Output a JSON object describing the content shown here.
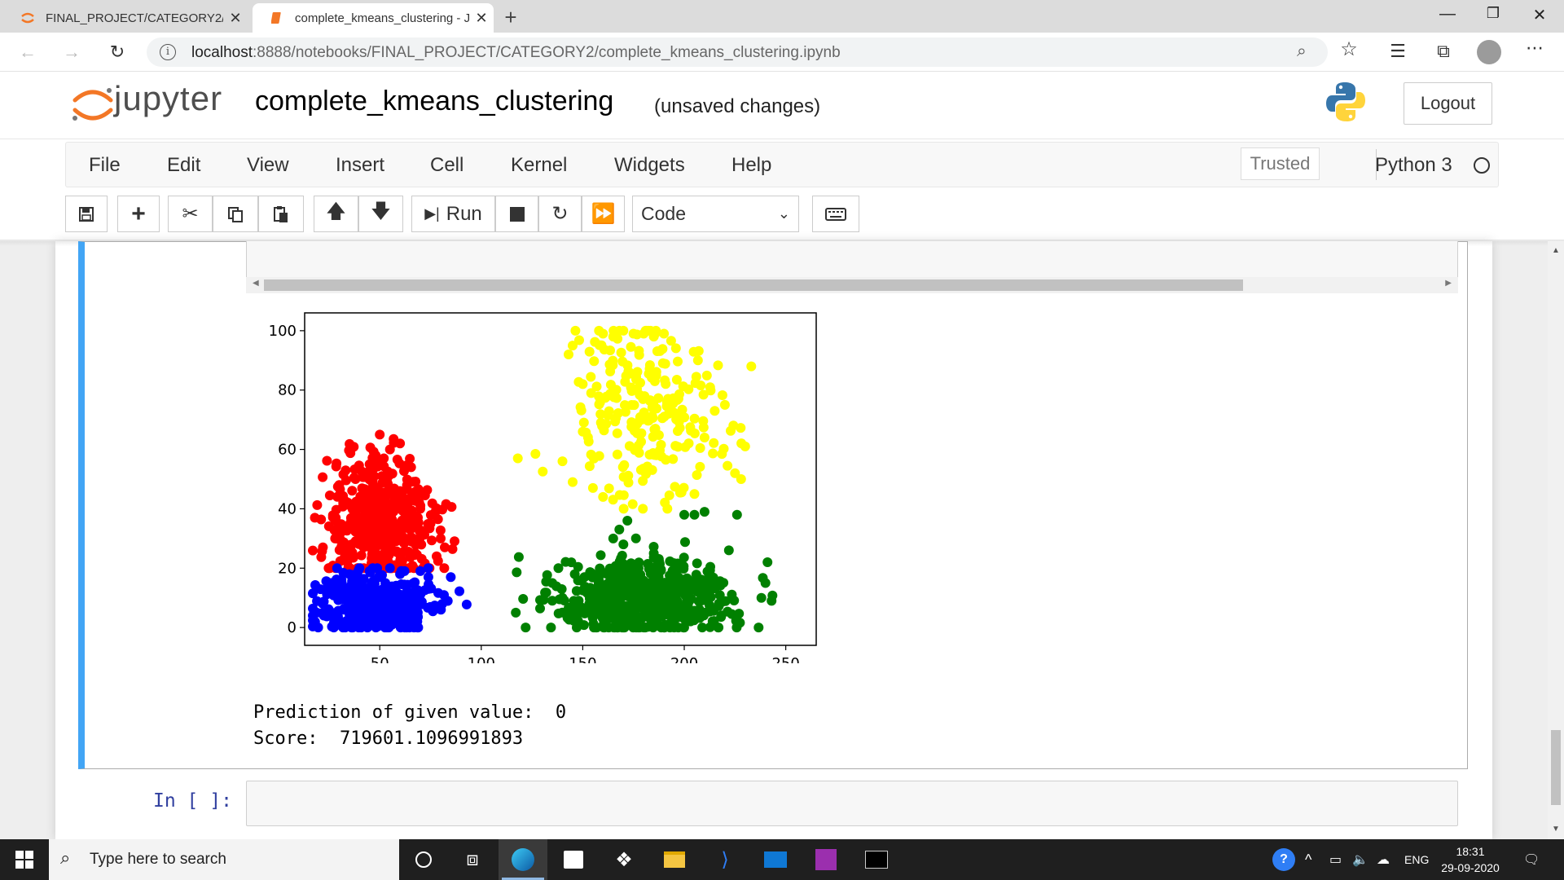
{
  "browser": {
    "tabs": [
      {
        "title": "FINAL_PROJECT/CATEGORY2/",
        "active": false
      },
      {
        "title": "complete_kmeans_clustering - Ju",
        "active": true
      }
    ],
    "url_host": "localhost",
    "url_rest": ":8888/notebooks/FINAL_PROJECT/CATEGORY2/complete_kmeans_clustering.ipynb",
    "window_controls": {
      "minimize": "—",
      "restore": "❐",
      "close": "✕"
    },
    "icons": [
      "back-icon",
      "forward-icon",
      "refresh-icon",
      "zoom-icon",
      "favorite-star-icon",
      "favorites-list-icon",
      "collections-icon",
      "profile-icon",
      "more-icon"
    ]
  },
  "jupyter": {
    "logo_text": "jupyter",
    "notebook_title": "complete_kmeans_clustering",
    "save_status": "(unsaved changes)",
    "logout_label": "Logout",
    "menu": [
      "File",
      "Edit",
      "View",
      "Insert",
      "Cell",
      "Kernel",
      "Widgets",
      "Help"
    ],
    "trusted_label": "Trusted",
    "kernel_name": "Python 3",
    "toolbar": {
      "run_label": "Run",
      "cell_type": "Code"
    }
  },
  "output": {
    "prediction_line": "Prediction of given value:  0",
    "score_line": "Score:  719601.1096991893"
  },
  "next_cell": {
    "prompt": "In [ ]:"
  },
  "chart_data": {
    "type": "scatter",
    "title": "",
    "xlabel": "",
    "ylabel": "",
    "xlim": [
      13,
      265
    ],
    "ylim": [
      -6,
      106
    ],
    "xticks": [
      50,
      100,
      150,
      200,
      250
    ],
    "yticks": [
      0,
      20,
      40,
      60,
      80,
      100
    ],
    "grid": false,
    "series": [
      {
        "color": "#ff0000",
        "cluster": {
          "cx": 50,
          "cy": 36,
          "sx": 13,
          "sy": 11,
          "ymin": 20,
          "ymax": 65,
          "n": 420
        },
        "x": [
          18,
          22,
          28,
          30,
          32,
          34,
          80,
          82,
          78,
          75,
          70,
          66,
          60,
          45,
          50,
          55,
          48,
          52
        ],
        "y": [
          37,
          27,
          30,
          48,
          42,
          22,
          30,
          27,
          24,
          35,
          40,
          45,
          62,
          55,
          65,
          60,
          58,
          57
        ]
      },
      {
        "color": "#0000ff",
        "cluster": {
          "cx": 48,
          "cy": 8,
          "sx": 14,
          "sy": 5,
          "ymin": 0,
          "ymax": 20,
          "n": 420
        },
        "x": [
          19,
          22,
          26,
          35,
          40,
          45,
          55,
          60,
          70,
          85
        ],
        "y": [
          5,
          8,
          15,
          18,
          20,
          19,
          20,
          18,
          19,
          17
        ]
      },
      {
        "color": "#008000",
        "cluster": {
          "cx": 180,
          "cy": 10,
          "sx": 22,
          "sy": 6,
          "ymin": 0,
          "ymax": 38,
          "n": 600
        },
        "x": [
          117,
          135,
          138,
          140,
          243,
          240,
          241,
          238,
          226,
          222,
          185,
          170,
          168,
          172,
          165,
          205,
          210,
          200
        ],
        "y": [
          5,
          15,
          20,
          10,
          9,
          15,
          22,
          10,
          38,
          26,
          25,
          28,
          33,
          36,
          30,
          38,
          39,
          38
        ]
      },
      {
        "color": "#ffff00",
        "cluster": {
          "cx": 180,
          "cy": 73,
          "sx": 18,
          "sy": 15,
          "ymin": 40,
          "ymax": 100,
          "n": 230
        },
        "x": [
          118,
          140,
          143,
          145,
          150,
          158,
          160,
          165,
          170,
          175,
          180,
          185,
          190,
          233,
          215,
          220,
          225,
          230,
          228,
          210,
          205,
          160,
          155,
          145,
          150
        ],
        "y": [
          57,
          56,
          92,
          95,
          82,
          100,
          99,
          98,
          100,
          99,
          99,
          98,
          99,
          88,
          73,
          75,
          52,
          61,
          50,
          64,
          45,
          44,
          47,
          49,
          66
        ]
      }
    ]
  }
}
